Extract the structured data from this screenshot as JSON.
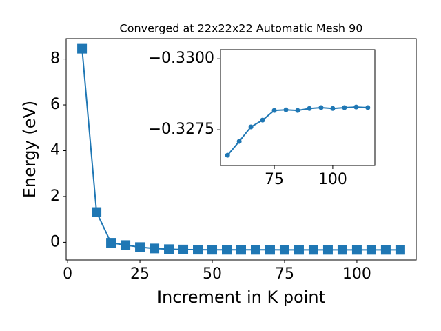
{
  "chart_data": [
    {
      "type": "line",
      "title": "Converged at 22x22x22 Automatic Mesh 90",
      "x_label": "Increment in K point",
      "y_label": "Energy (eV)",
      "x": [
        5,
        10,
        15,
        20,
        25,
        30,
        35,
        40,
        45,
        50,
        55,
        60,
        65,
        70,
        75,
        80,
        85,
        90,
        95,
        100,
        105,
        110,
        115
      ],
      "series": [
        {
          "name": "Energy",
          "color": "#1f77b4",
          "marker": "square",
          "values": [
            8.45,
            1.32,
            -0.02,
            -0.12,
            -0.21,
            -0.27,
            -0.3,
            -0.315,
            -0.322,
            -0.325,
            -0.3266,
            -0.3271,
            -0.3276,
            -0.3278,
            -0.3282,
            -0.3282,
            -0.3282,
            -0.3283,
            -0.3283,
            -0.3283,
            -0.3283,
            -0.3283,
            -0.3283
          ]
        }
      ],
      "xlim": [
        -0.5,
        120.5
      ],
      "ylim": [
        -0.77,
        8.89
      ],
      "xticks": [
        0,
        25,
        50,
        75,
        100
      ],
      "yticks": [
        0,
        2,
        4,
        6,
        8
      ]
    },
    {
      "type": "line",
      "x": [
        55,
        60,
        65,
        70,
        75,
        80,
        85,
        90,
        95,
        100,
        105,
        110,
        115
      ],
      "series": [
        {
          "name": "Energy",
          "color": "#1f77b4",
          "marker": "circle",
          "values": [
            -0.3266,
            -0.32709,
            -0.3276,
            -0.32784,
            -0.32818,
            -0.3282,
            -0.32818,
            -0.32825,
            -0.32828,
            -0.32825,
            -0.32828,
            -0.3283,
            -0.32828
          ]
        }
      ],
      "xlim": [
        52,
        118
      ],
      "ylim": [
        -0.32624,
        -0.33032
      ],
      "xticks": [
        75,
        100
      ],
      "yticks": [
        {
          "value": -0.33,
          "label": "−0.3300"
        },
        {
          "value": -0.3275,
          "label": "−0.3275"
        }
      ]
    }
  ]
}
